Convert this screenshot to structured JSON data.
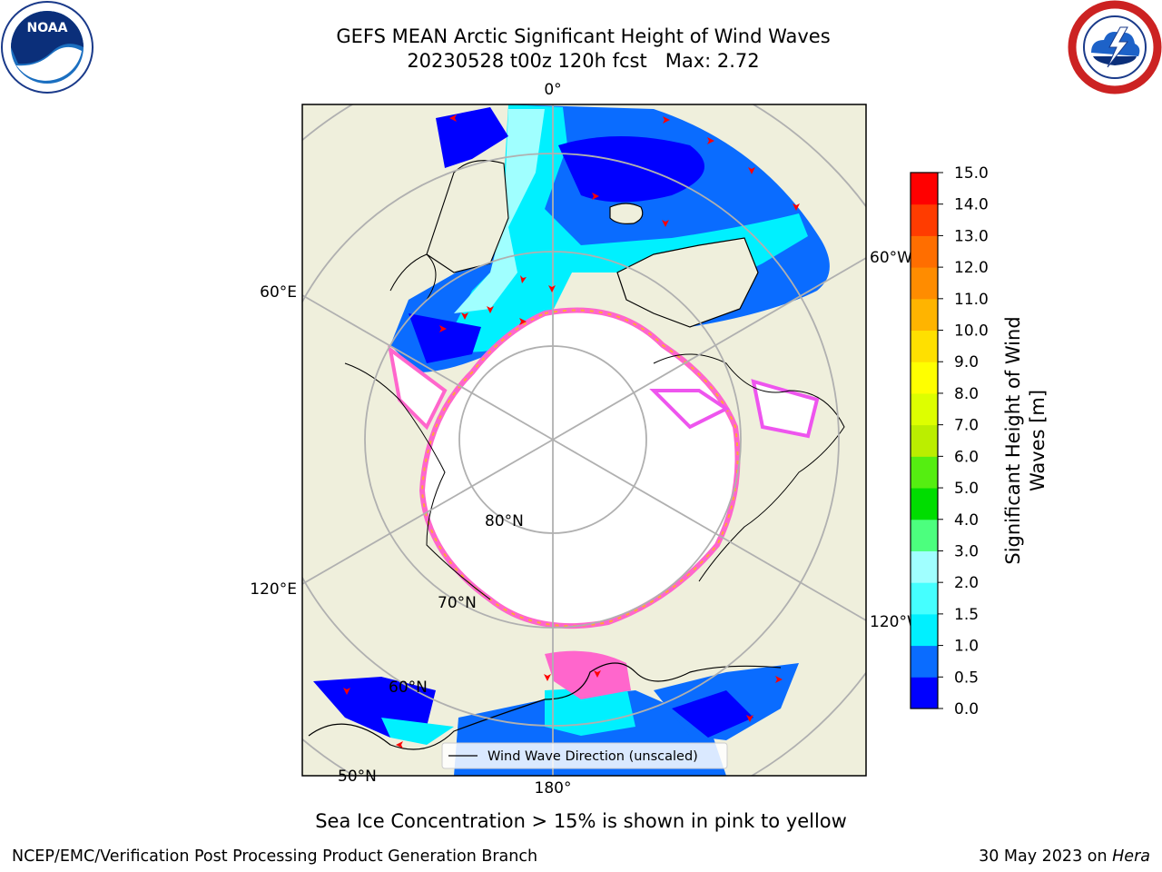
{
  "header": {
    "title": "GEFS MEAN Arctic Significant Height of Wind Waves",
    "subtitle": "20230528 t00z 120h fcst   Max: 2.72"
  },
  "logos": {
    "noaa": {
      "text": "NOAA",
      "icon": "noaa-logo-icon"
    },
    "nws": {
      "icon": "nws-logo-icon"
    }
  },
  "map": {
    "projection": "north-polar-stereographic",
    "meridian_labels": [
      "0°",
      "60°W",
      "120°W",
      "180°",
      "120°E",
      "60°E"
    ],
    "parallel_labels": [
      "80°N",
      "70°N",
      "60°N",
      "50°N"
    ],
    "colors": {
      "land": "#efefdc",
      "ice": "#ffffff",
      "ice_edge": [
        "#ff66cc",
        "#ee55ee",
        "#ffaa33"
      ],
      "grid": "#b0b0b0",
      "arrow": "#ff0000"
    },
    "legend": {
      "label": "Wind Wave Direction (unscaled)",
      "placement": "lower-center"
    }
  },
  "colorbar": {
    "label_line1": "Significant Height of Wind",
    "label_line2": "Waves [m]",
    "ticks": [
      "0.0",
      "0.5",
      "1.0",
      "1.5",
      "2.0",
      "3.0",
      "4.0",
      "5.0",
      "6.0",
      "7.0",
      "8.0",
      "9.0",
      "10.0",
      "11.0",
      "12.0",
      "13.0",
      "14.0",
      "15.0"
    ],
    "colors": [
      "#0000ff",
      "#0a6cff",
      "#00f0ff",
      "#45ffff",
      "#a0ffff",
      "#4cff7e",
      "#00dd00",
      "#55ee11",
      "#bbee00",
      "#ddff00",
      "#ffff00",
      "#ffe000",
      "#ffb400",
      "#ff8c00",
      "#ff6e00",
      "#ff3c00",
      "#ff0000"
    ]
  },
  "footer": {
    "caption": "Sea Ice Concentration > 15% is shown in pink to yellow",
    "left": "NCEP/EMC/Verification Post Processing Product Generation Branch",
    "right_date": "30 May 2023 on ",
    "right_host": "Hera"
  }
}
